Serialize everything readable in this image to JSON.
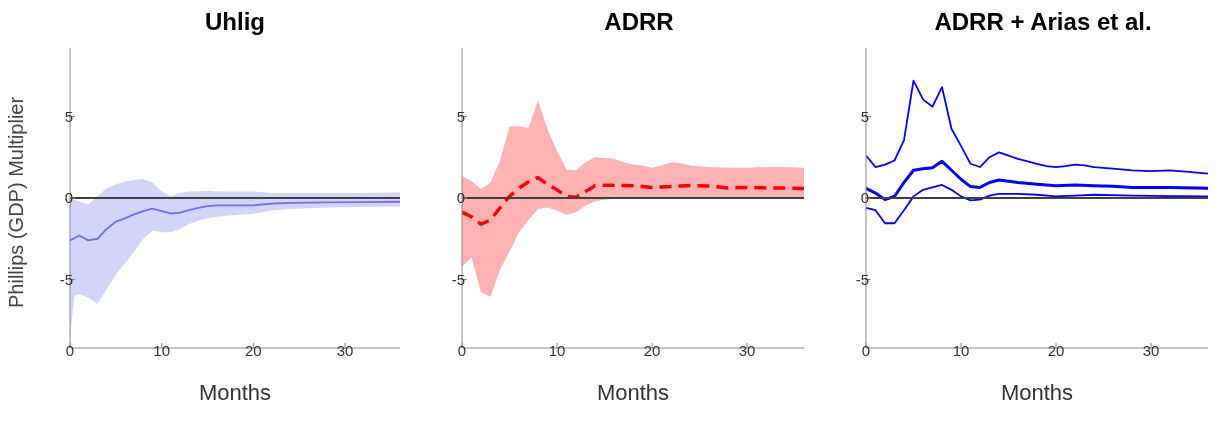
{
  "chart_data": [
    {
      "type": "line",
      "title": "Uhlig",
      "xlabel": "Months",
      "ylabel": "Phillips (GDP) Multiplier",
      "xlim": [
        0,
        36
      ],
      "ylim": [
        -9.2,
        9.2
      ],
      "xticks": [
        0,
        10,
        20,
        30
      ],
      "yticks": [
        -5,
        0,
        5
      ],
      "grid": false,
      "marker": "none",
      "ref_lines": [
        {
          "axis": "y",
          "value": 0,
          "color": "#404040"
        }
      ],
      "series": [
        {
          "color": "#6f6ff2",
          "x": [
            0,
            0.5,
            1,
            2,
            3,
            4,
            5,
            6,
            7,
            8,
            9,
            10,
            11,
            12,
            13,
            14,
            15,
            16,
            18,
            20,
            22,
            24,
            28,
            32,
            36
          ],
          "values": [
            -2.6,
            -2.45,
            -2.3,
            -2.6,
            -2.5,
            -1.9,
            -1.45,
            -1.25,
            -1.0,
            -0.8,
            -0.65,
            -0.8,
            -0.95,
            -0.9,
            -0.75,
            -0.6,
            -0.5,
            -0.45,
            -0.45,
            -0.45,
            -0.35,
            -0.3,
            -0.27,
            -0.25,
            -0.23
          ],
          "lower": [
            -8.5,
            -6.0,
            -5.9,
            -6.1,
            -6.5,
            -5.6,
            -4.7,
            -4.0,
            -3.3,
            -2.5,
            -2.0,
            -2.1,
            -2.1,
            -1.9,
            -1.6,
            -1.4,
            -1.25,
            -1.15,
            -1.05,
            -0.96,
            -0.77,
            -0.67,
            -0.58,
            -0.55,
            -0.54
          ],
          "upper": [
            -0.1,
            -0.1,
            -0.2,
            -0.4,
            0.1,
            0.6,
            0.85,
            1.0,
            1.1,
            1.15,
            0.95,
            0.4,
            0.1,
            0.3,
            0.4,
            0.42,
            0.45,
            0.4,
            0.4,
            0.4,
            0.3,
            0.3,
            0.3,
            0.3,
            0.35
          ]
        }
      ]
    },
    {
      "type": "line",
      "title": "ADRR",
      "xlabel": "Months",
      "xlim": [
        0,
        36
      ],
      "ylim": [
        -9.2,
        9.2
      ],
      "xticks": [
        0,
        10,
        20,
        30
      ],
      "yticks": [
        -5,
        0,
        5
      ],
      "grid": false,
      "marker": "none",
      "ref_lines": [
        {
          "axis": "y",
          "value": 0,
          "color": "#404040"
        }
      ],
      "series": [
        {
          "color": "#ff0000",
          "line_style": "dashed",
          "x": [
            0,
            1,
            2,
            3,
            4,
            5,
            6,
            7,
            8,
            9,
            10,
            11,
            12,
            13,
            14,
            15,
            16,
            17,
            18,
            19,
            20,
            21,
            22,
            23,
            24,
            26,
            28,
            30,
            32,
            34,
            36
          ],
          "values": [
            -0.87,
            -1.15,
            -1.6,
            -1.35,
            -0.6,
            0.1,
            0.6,
            1.0,
            1.25,
            0.85,
            0.5,
            0.1,
            0.05,
            0.4,
            0.75,
            0.78,
            0.78,
            0.77,
            0.75,
            0.7,
            0.65,
            0.68,
            0.7,
            0.74,
            0.77,
            0.73,
            0.62,
            0.65,
            0.62,
            0.62,
            0.58
          ],
          "lower": [
            -4.2,
            -3.65,
            -5.8,
            -6.05,
            -4.4,
            -3.3,
            -2.1,
            -1.35,
            -0.67,
            -0.58,
            -0.77,
            -1.05,
            -0.87,
            -0.48,
            -0.2,
            -0.1,
            -0.05,
            0,
            0,
            0,
            0,
            0,
            0,
            0,
            0,
            0,
            0,
            0,
            0,
            0,
            0
          ],
          "upper": [
            1.35,
            1.05,
            0.55,
            0.95,
            2.3,
            4.4,
            4.4,
            4.3,
            6.0,
            4.2,
            2.9,
            1.75,
            1.7,
            2.2,
            2.5,
            2.45,
            2.4,
            2.2,
            2.05,
            2.0,
            1.85,
            2.0,
            2.2,
            2.15,
            2.0,
            1.9,
            1.85,
            1.85,
            1.9,
            1.9,
            1.85
          ]
        }
      ]
    },
    {
      "type": "line",
      "title": "ADRR + Arias et al.",
      "xlabel": "Months",
      "xlim": [
        0,
        36
      ],
      "ylim": [
        -9.2,
        9.2
      ],
      "xticks": [
        0,
        10,
        20,
        30
      ],
      "yticks": [
        -5,
        0,
        5
      ],
      "grid": false,
      "marker": "none",
      "ref_lines": [
        {
          "axis": "y",
          "value": 0,
          "color": "#404040"
        }
      ],
      "series": [
        {
          "color": "#0000ff",
          "x": [
            0,
            1,
            2,
            3,
            4,
            5,
            6,
            7,
            8,
            9,
            10,
            11,
            12,
            13,
            14,
            15,
            16,
            17,
            18,
            19,
            20,
            21,
            22,
            23,
            24,
            26,
            28,
            30,
            32,
            34,
            36
          ],
          "values": [
            2.6,
            1.9,
            2.05,
            2.3,
            3.55,
            7.2,
            6.05,
            5.6,
            6.8,
            4.25,
            3.2,
            2.1,
            1.9,
            2.5,
            2.8,
            2.6,
            2.4,
            2.25,
            2.1,
            1.95,
            1.9,
            1.95,
            2.05,
            2.0,
            1.9,
            1.8,
            1.7,
            1.65,
            1.7,
            1.6,
            1.5
          ]
        },
        {
          "color": "#0000ff",
          "x": [
            0,
            1,
            2,
            3,
            4,
            5,
            6,
            7,
            8,
            9,
            10,
            11,
            12,
            13,
            14,
            16,
            18,
            20,
            22,
            24,
            26,
            28,
            32,
            36
          ],
          "values": [
            0.6,
            0.3,
            -0.1,
            0.1,
            0.95,
            1.7,
            1.8,
            1.85,
            2.25,
            1.7,
            1.15,
            0.7,
            0.65,
            0.95,
            1.1,
            0.95,
            0.85,
            0.75,
            0.8,
            0.75,
            0.72,
            0.65,
            0.65,
            0.6
          ]
        },
        {
          "color": "#0000ff",
          "x": [
            0,
            1,
            2,
            3,
            4,
            5,
            6,
            7,
            8,
            9,
            10,
            11,
            12,
            13,
            14,
            16,
            18,
            20,
            22,
            24,
            28,
            32,
            36
          ],
          "values": [
            -0.6,
            -0.75,
            -1.55,
            -1.55,
            -0.75,
            0.1,
            0.5,
            0.65,
            0.8,
            0.5,
            0.1,
            -0.15,
            -0.1,
            0.15,
            0.25,
            0.25,
            0.2,
            0.1,
            0.15,
            0.2,
            0.15,
            0.12,
            0.1
          ]
        }
      ]
    }
  ]
}
